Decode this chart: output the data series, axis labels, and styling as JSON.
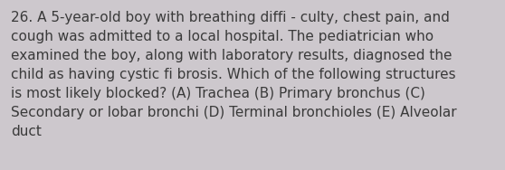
{
  "text": "26. A 5-year-old boy with breathing diffi - culty, chest pain, and\ncough was admitted to a local hospital. The pediatrician who\nexamined the boy, along with laboratory results, diagnosed the\nchild as having cystic fi brosis. Which of the following structures\nis most likely blocked? (A) Trachea (B) Primary bronchus (C)\nSecondary or lobar bronchi (D) Terminal bronchioles (E) Alveolar\nduct",
  "background_color": "#cdc8cd",
  "text_color": "#3a3a3a",
  "font_size": 11.0,
  "fig_width": 5.58,
  "fig_height": 1.88,
  "dpi": 100
}
